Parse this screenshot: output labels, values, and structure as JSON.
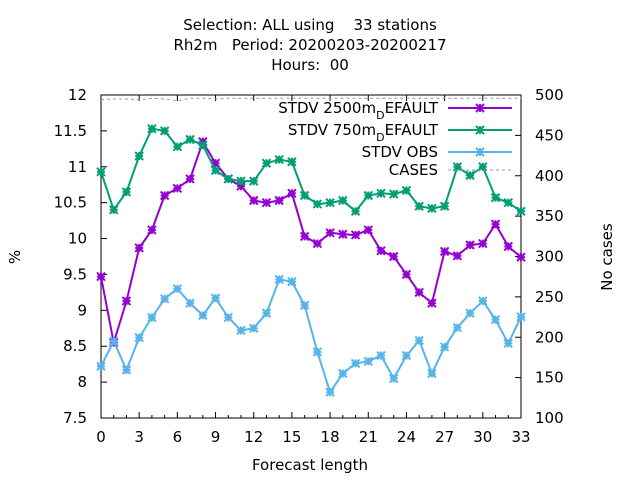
{
  "title": {
    "line1": "Selection: ALL using    33 stations",
    "line2": "Rh2m   Period: 20200203-20200217",
    "line3": "Hours:  00"
  },
  "chart_data": {
    "type": "line",
    "xlabel": "Forecast length",
    "ylabel": "%",
    "y2label": "No cases",
    "xlim": [
      0,
      33
    ],
    "ylim": [
      7.5,
      12
    ],
    "y2lim": [
      100,
      500
    ],
    "xticks": [
      "0",
      "3",
      "6",
      "9",
      "12",
      "15",
      "18",
      "21",
      "24",
      "27",
      "30",
      "33"
    ],
    "yticks": [
      "7.5",
      "8",
      "8.5",
      "9",
      "9.5",
      "10",
      "10.5",
      "11",
      "11.5",
      "12"
    ],
    "y2ticks": [
      "100",
      "150",
      "200",
      "250",
      "300",
      "350",
      "400",
      "450",
      "500"
    ],
    "legend_position": "top-right",
    "x": [
      0,
      1,
      2,
      3,
      4,
      5,
      6,
      7,
      8,
      9,
      10,
      11,
      12,
      13,
      14,
      15,
      16,
      17,
      18,
      19,
      20,
      21,
      22,
      23,
      24,
      25,
      26,
      27,
      28,
      29,
      30,
      31,
      32,
      33
    ],
    "series": [
      {
        "name": "STDV 2500m_DEFAULT",
        "legend_main": "STDV 2500m",
        "legend_sub": "D",
        "legend_tail": "EFAULT",
        "color": "#9400d3",
        "values": [
          9.47,
          8.55,
          9.13,
          9.87,
          10.12,
          10.6,
          10.7,
          10.83,
          11.35,
          11.05,
          10.83,
          10.73,
          10.53,
          10.5,
          10.53,
          10.63,
          10.03,
          9.93,
          10.08,
          10.06,
          10.05,
          10.12,
          9.83,
          9.75,
          9.5,
          9.25,
          9.1,
          9.82,
          9.76,
          9.91,
          9.93,
          10.2,
          9.89,
          9.74
        ]
      },
      {
        "name": "STDV 750m_DEFAULT",
        "legend_main": "STDV 750m",
        "legend_sub": "D",
        "legend_tail": "EFAULT",
        "color": "#009e73",
        "values": [
          10.93,
          10.4,
          10.65,
          11.15,
          11.53,
          11.5,
          11.28,
          11.38,
          11.3,
          10.95,
          10.83,
          10.8,
          10.8,
          11.05,
          11.1,
          11.07,
          10.6,
          10.48,
          10.5,
          10.53,
          10.38,
          10.6,
          10.63,
          10.62,
          10.67,
          10.45,
          10.42,
          10.45,
          11.0,
          10.88,
          11.0,
          10.57,
          10.5,
          10.38
        ]
      },
      {
        "name": "STDV OBS",
        "legend_main": "STDV OBS",
        "legend_sub": "",
        "legend_tail": "",
        "color": "#56b4e9",
        "values": [
          8.22,
          8.57,
          8.17,
          8.62,
          8.9,
          9.16,
          9.3,
          9.1,
          8.93,
          9.17,
          8.9,
          8.72,
          8.75,
          8.96,
          9.43,
          9.4,
          9.07,
          8.42,
          7.86,
          8.12,
          8.26,
          8.29,
          8.37,
          8.05,
          8.37,
          8.58,
          8.12,
          8.49,
          8.76,
          8.96,
          9.13,
          8.87,
          8.54,
          8.91
        ]
      },
      {
        "name": "CASES",
        "legend_main": "CASES",
        "legend_sub": "",
        "legend_tail": "",
        "color": "#999999",
        "axis": "y2",
        "values": [
          494,
          495,
          495,
          494,
          496,
          495,
          493,
          496,
          496,
          495,
          496,
          496,
          496,
          496,
          496,
          496,
          496,
          496,
          496,
          496,
          496,
          496,
          496,
          496,
          496,
          496,
          496,
          496,
          496,
          496,
          496,
          496,
          496,
          496
        ]
      }
    ]
  }
}
